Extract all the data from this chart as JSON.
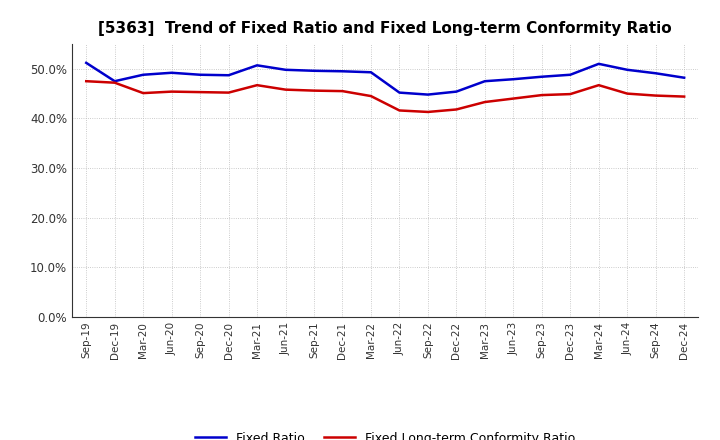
{
  "title": "[5363]  Trend of Fixed Ratio and Fixed Long-term Conformity Ratio",
  "x_labels": [
    "Sep-19",
    "Dec-19",
    "Mar-20",
    "Jun-20",
    "Sep-20",
    "Dec-20",
    "Mar-21",
    "Jun-21",
    "Sep-21",
    "Dec-21",
    "Mar-22",
    "Jun-22",
    "Sep-22",
    "Dec-22",
    "Mar-23",
    "Jun-23",
    "Sep-23",
    "Dec-23",
    "Mar-24",
    "Jun-24",
    "Sep-24",
    "Dec-24"
  ],
  "fixed_ratio": [
    51.2,
    47.5,
    48.8,
    49.2,
    48.8,
    48.7,
    50.7,
    49.8,
    49.6,
    49.5,
    49.3,
    45.2,
    44.8,
    45.4,
    47.5,
    47.9,
    48.4,
    48.8,
    51.0,
    49.8,
    49.1,
    48.2
  ],
  "fixed_lt_ratio": [
    47.5,
    47.2,
    45.1,
    45.4,
    45.3,
    45.2,
    46.7,
    45.8,
    45.6,
    45.5,
    44.5,
    41.6,
    41.3,
    41.8,
    43.3,
    44.0,
    44.7,
    44.9,
    46.7,
    45.0,
    44.6,
    44.4
  ],
  "fixed_ratio_color": "#0000CC",
  "fixed_lt_ratio_color": "#CC0000",
  "ylim": [
    0,
    55
  ],
  "yticks": [
    0,
    10,
    20,
    30,
    40,
    50
  ],
  "background_color": "#FFFFFF",
  "grid_color": "#BBBBBB",
  "legend_fixed_ratio": "Fixed Ratio",
  "legend_fixed_lt_ratio": "Fixed Long-term Conformity Ratio",
  "title_fontsize": 11,
  "line_width": 1.8
}
